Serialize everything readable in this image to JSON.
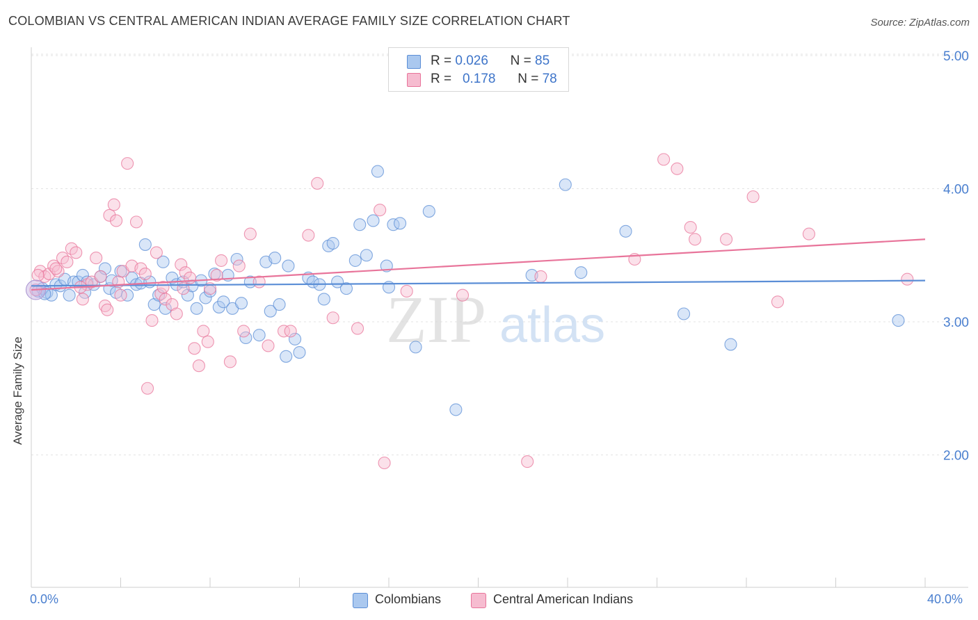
{
  "header": {
    "title": "COLOMBIAN VS CENTRAL AMERICAN INDIAN AVERAGE FAMILY SIZE CORRELATION CHART",
    "source": "Source: ZipAtlas.com"
  },
  "watermark": {
    "zip": "ZIP",
    "atlas": "atlas"
  },
  "legend_top": [
    {
      "r_label": "R =",
      "r_value": "0.026",
      "n_label": "N =",
      "n_value": "85",
      "color": "#5b8ed6"
    },
    {
      "r_label": "R =",
      "r_value": "0.178",
      "n_label": "N =",
      "n_value": "78",
      "color": "#e8749a"
    }
  ],
  "legend_bottom": [
    {
      "label": "Colombians",
      "color": "#5b8ed6"
    },
    {
      "label": "Central American Indians",
      "color": "#e8749a"
    }
  ],
  "chart_data": {
    "type": "scatter",
    "title": "COLOMBIAN VS CENTRAL AMERICAN INDIAN AVERAGE FAMILY SIZE CORRELATION CHART",
    "xlabel": "",
    "ylabel": "Average Family Size",
    "xlim": [
      0,
      40
    ],
    "ylim": [
      1.0,
      5.1
    ],
    "x_tick_labels": [
      "0.0%",
      "40.0%"
    ],
    "y_ticks": [
      2.0,
      3.0,
      4.0,
      5.0
    ],
    "y_tick_labels": [
      "2.00",
      "3.00",
      "4.00",
      "5.00"
    ],
    "grid": true,
    "legend_position": "top-center",
    "series": [
      {
        "name": "Colombians",
        "color": "#5b8ed6",
        "fill": "#aac8ef",
        "trend": [
          [
            0,
            3.27
          ],
          [
            40,
            3.31
          ]
        ],
        "points": [
          [
            0.3,
            3.23
          ],
          [
            0.5,
            3.25
          ],
          [
            0.7,
            3.22
          ],
          [
            0.9,
            3.2
          ],
          [
            1.1,
            3.28
          ],
          [
            1.3,
            3.27
          ],
          [
            1.5,
            3.32
          ],
          [
            1.7,
            3.2
          ],
          [
            1.9,
            3.3
          ],
          [
            2.1,
            3.3
          ],
          [
            2.3,
            3.35
          ],
          [
            2.5,
            3.3
          ],
          [
            2.8,
            3.28
          ],
          [
            3.1,
            3.34
          ],
          [
            3.3,
            3.4
          ],
          [
            3.5,
            3.25
          ],
          [
            3.8,
            3.22
          ],
          [
            4.0,
            3.38
          ],
          [
            4.3,
            3.2
          ],
          [
            4.5,
            3.33
          ],
          [
            4.7,
            3.28
          ],
          [
            4.9,
            3.29
          ],
          [
            5.1,
            3.58
          ],
          [
            5.3,
            3.3
          ],
          [
            5.5,
            3.13
          ],
          [
            5.7,
            3.2
          ],
          [
            5.9,
            3.45
          ],
          [
            6.0,
            3.1
          ],
          [
            6.3,
            3.33
          ],
          [
            6.5,
            3.28
          ],
          [
            6.8,
            3.3
          ],
          [
            7.0,
            3.2
          ],
          [
            7.2,
            3.27
          ],
          [
            7.4,
            3.1
          ],
          [
            7.6,
            3.31
          ],
          [
            7.8,
            3.18
          ],
          [
            8.0,
            3.23
          ],
          [
            8.2,
            3.36
          ],
          [
            8.4,
            3.11
          ],
          [
            8.6,
            3.15
          ],
          [
            8.8,
            3.35
          ],
          [
            9.0,
            3.1
          ],
          [
            9.2,
            3.47
          ],
          [
            9.4,
            3.14
          ],
          [
            9.6,
            2.88
          ],
          [
            9.8,
            3.3
          ],
          [
            10.2,
            2.9
          ],
          [
            10.5,
            3.45
          ],
          [
            10.7,
            3.08
          ],
          [
            10.9,
            3.48
          ],
          [
            11.1,
            3.13
          ],
          [
            11.4,
            2.74
          ],
          [
            11.5,
            3.42
          ],
          [
            11.8,
            2.87
          ],
          [
            12.0,
            2.77
          ],
          [
            12.4,
            3.33
          ],
          [
            12.6,
            3.3
          ],
          [
            12.9,
            3.28
          ],
          [
            13.1,
            3.17
          ],
          [
            13.3,
            3.57
          ],
          [
            13.5,
            3.59
          ],
          [
            13.7,
            3.3
          ],
          [
            14.1,
            3.25
          ],
          [
            14.5,
            3.46
          ],
          [
            14.7,
            3.73
          ],
          [
            15.0,
            3.5
          ],
          [
            15.3,
            3.76
          ],
          [
            15.5,
            4.13
          ],
          [
            15.9,
            3.42
          ],
          [
            16.0,
            3.26
          ],
          [
            16.2,
            3.73
          ],
          [
            16.5,
            3.74
          ],
          [
            17.2,
            2.81
          ],
          [
            17.8,
            3.83
          ],
          [
            19.0,
            2.34
          ],
          [
            22.4,
            3.35
          ],
          [
            23.9,
            4.03
          ],
          [
            24.6,
            3.37
          ],
          [
            26.6,
            3.68
          ],
          [
            29.2,
            3.06
          ],
          [
            31.3,
            2.83
          ],
          [
            38.8,
            3.01
          ],
          [
            0.6,
            3.21
          ],
          [
            2.4,
            3.22
          ],
          [
            3.6,
            3.31
          ]
        ]
      },
      {
        "name": "Central American Indians",
        "color": "#e8749a",
        "fill": "#f6bcd0",
        "trend": [
          [
            0,
            3.24
          ],
          [
            40,
            3.62
          ]
        ],
        "points": [
          [
            0.2,
            3.24
          ],
          [
            0.4,
            3.38
          ],
          [
            0.6,
            3.34
          ],
          [
            0.8,
            3.36
          ],
          [
            1.0,
            3.42
          ],
          [
            1.2,
            3.38
          ],
          [
            1.4,
            3.48
          ],
          [
            1.6,
            3.45
          ],
          [
            1.8,
            3.55
          ],
          [
            2.0,
            3.52
          ],
          [
            2.3,
            3.17
          ],
          [
            2.5,
            3.28
          ],
          [
            2.7,
            3.3
          ],
          [
            2.9,
            3.48
          ],
          [
            3.1,
            3.34
          ],
          [
            3.3,
            3.12
          ],
          [
            3.5,
            3.8
          ],
          [
            3.7,
            3.88
          ],
          [
            3.8,
            3.76
          ],
          [
            3.9,
            3.3
          ],
          [
            4.1,
            3.38
          ],
          [
            4.3,
            4.19
          ],
          [
            4.5,
            3.42
          ],
          [
            4.7,
            3.75
          ],
          [
            4.9,
            3.4
          ],
          [
            5.1,
            3.36
          ],
          [
            5.2,
            2.5
          ],
          [
            5.4,
            3.01
          ],
          [
            5.6,
            3.52
          ],
          [
            5.8,
            3.21
          ],
          [
            6.0,
            3.17
          ],
          [
            6.3,
            3.13
          ],
          [
            6.5,
            3.06
          ],
          [
            6.7,
            3.43
          ],
          [
            6.9,
            3.37
          ],
          [
            7.1,
            3.33
          ],
          [
            7.3,
            2.8
          ],
          [
            7.5,
            2.67
          ],
          [
            7.7,
            2.93
          ],
          [
            7.9,
            2.85
          ],
          [
            8.0,
            3.25
          ],
          [
            8.3,
            3.35
          ],
          [
            8.5,
            3.46
          ],
          [
            8.9,
            2.7
          ],
          [
            9.3,
            3.42
          ],
          [
            9.5,
            2.93
          ],
          [
            9.8,
            3.66
          ],
          [
            10.2,
            3.3
          ],
          [
            10.6,
            2.82
          ],
          [
            11.3,
            2.93
          ],
          [
            11.6,
            2.93
          ],
          [
            12.4,
            3.65
          ],
          [
            12.8,
            4.04
          ],
          [
            13.5,
            3.03
          ],
          [
            14.6,
            2.95
          ],
          [
            15.6,
            3.84
          ],
          [
            15.8,
            1.94
          ],
          [
            16.8,
            3.23
          ],
          [
            19.3,
            3.2
          ],
          [
            22.2,
            1.95
          ],
          [
            22.8,
            3.34
          ],
          [
            27.0,
            3.47
          ],
          [
            28.3,
            4.22
          ],
          [
            28.9,
            4.15
          ],
          [
            29.5,
            3.71
          ],
          [
            29.7,
            3.62
          ],
          [
            31.1,
            3.62
          ],
          [
            32.3,
            3.94
          ],
          [
            33.4,
            3.15
          ],
          [
            34.8,
            3.66
          ],
          [
            39.2,
            3.32
          ],
          [
            0.3,
            3.35
          ],
          [
            1.1,
            3.4
          ],
          [
            2.2,
            3.26
          ],
          [
            3.4,
            3.09
          ],
          [
            5.9,
            3.26
          ],
          [
            4.0,
            3.2
          ],
          [
            6.8,
            3.25
          ]
        ]
      }
    ]
  }
}
